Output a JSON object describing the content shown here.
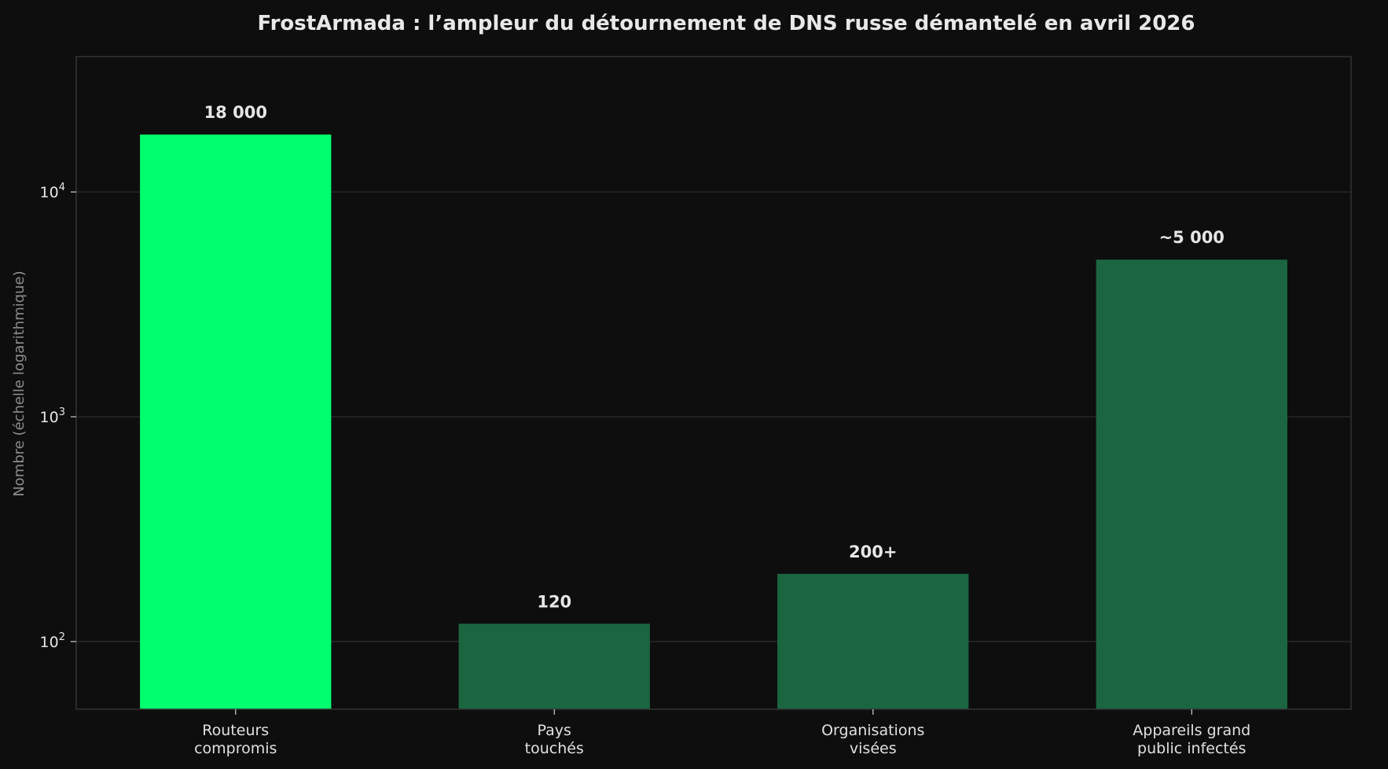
{
  "chart_data": {
    "type": "bar",
    "title": "FrostArmada : l’ampleur du détournement de DNS russe démantelé en avril 2026",
    "xlabel": "",
    "ylabel": "Nombre (échelle logarithmique)",
    "yscale": "log",
    "ylim": [
      50,
      40000
    ],
    "yticks": [
      {
        "value": 100,
        "base": "10",
        "exp": "2"
      },
      {
        "value": 1000,
        "base": "10",
        "exp": "3"
      },
      {
        "value": 10000,
        "base": "10",
        "exp": "4"
      }
    ],
    "grid": true,
    "categories": [
      [
        "Routeurs",
        "compromis"
      ],
      [
        "Pays",
        "touchés"
      ],
      [
        "Organisations",
        "visées"
      ],
      [
        "Appareils grand",
        "public infectés"
      ]
    ],
    "values": [
      18000,
      120,
      200,
      5000
    ],
    "data_labels": [
      "18 000",
      "120",
      "200+",
      "~5 000"
    ],
    "colors": [
      "#00ff6e",
      "#1b6641",
      "#1b6641",
      "#1b6641"
    ]
  },
  "theme": {
    "background": "#0e0e0e",
    "plot_border": "#333333",
    "grid": "#2b2b2b"
  }
}
